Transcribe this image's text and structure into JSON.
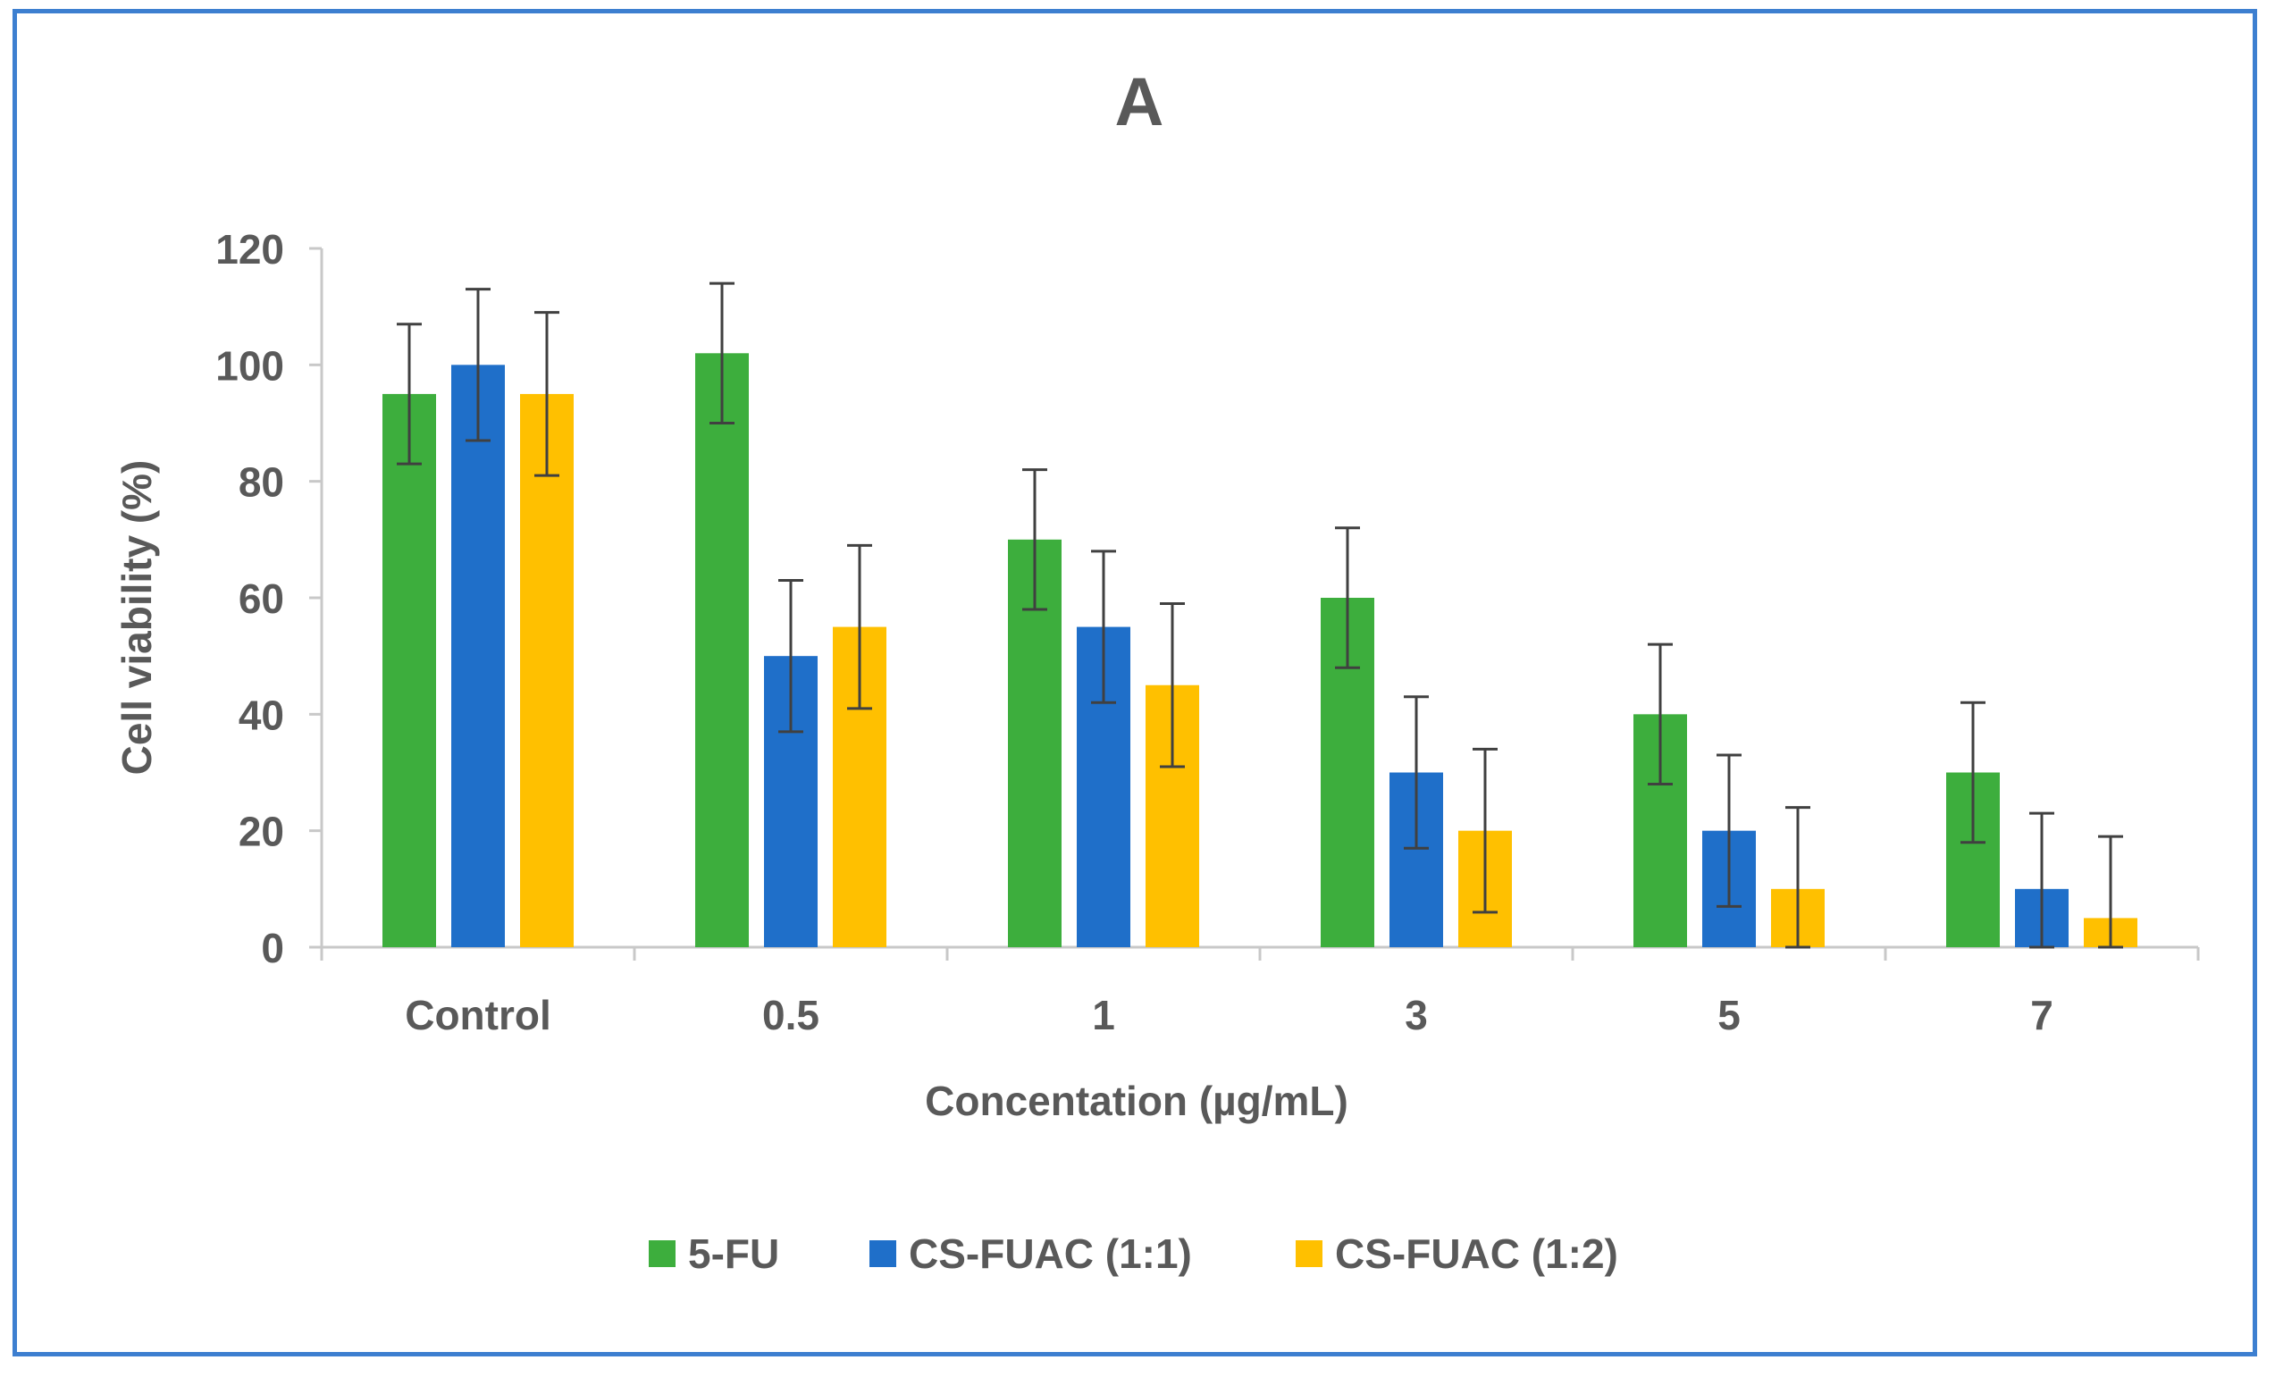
{
  "chart_data": {
    "type": "bar",
    "title": "A",
    "xlabel": "Concentation (µg/mL)",
    "ylabel": "Cell viability (%)",
    "ylim": [
      0,
      120
    ],
    "yticks": [
      0,
      20,
      40,
      60,
      80,
      100,
      120
    ],
    "grid": false,
    "legend_position": "bottom",
    "categories": [
      "Control",
      "0.5",
      "1",
      "3",
      "5",
      "7"
    ],
    "series": [
      {
        "name": "5-FU",
        "color": "#3dae3d",
        "values": [
          95,
          102,
          70,
          60,
          40,
          30
        ],
        "errors": [
          12,
          12,
          12,
          12,
          12,
          12
        ]
      },
      {
        "name": "CS-FUAC (1:1)",
        "color": "#1f6fc9",
        "values": [
          100,
          50,
          55,
          30,
          20,
          10
        ],
        "errors": [
          13,
          13,
          13,
          13,
          13,
          13
        ]
      },
      {
        "name": "CS-FUAC (1:2)",
        "color": "#ffc000",
        "values": [
          95,
          55,
          45,
          20,
          10,
          5
        ],
        "errors": [
          14,
          14,
          14,
          14,
          14,
          14
        ]
      }
    ]
  },
  "colors": {
    "frame_border": "#3d7fd0",
    "axis_line": "#c8c8c8",
    "text": "#595959",
    "error_bar": "#404040"
  }
}
